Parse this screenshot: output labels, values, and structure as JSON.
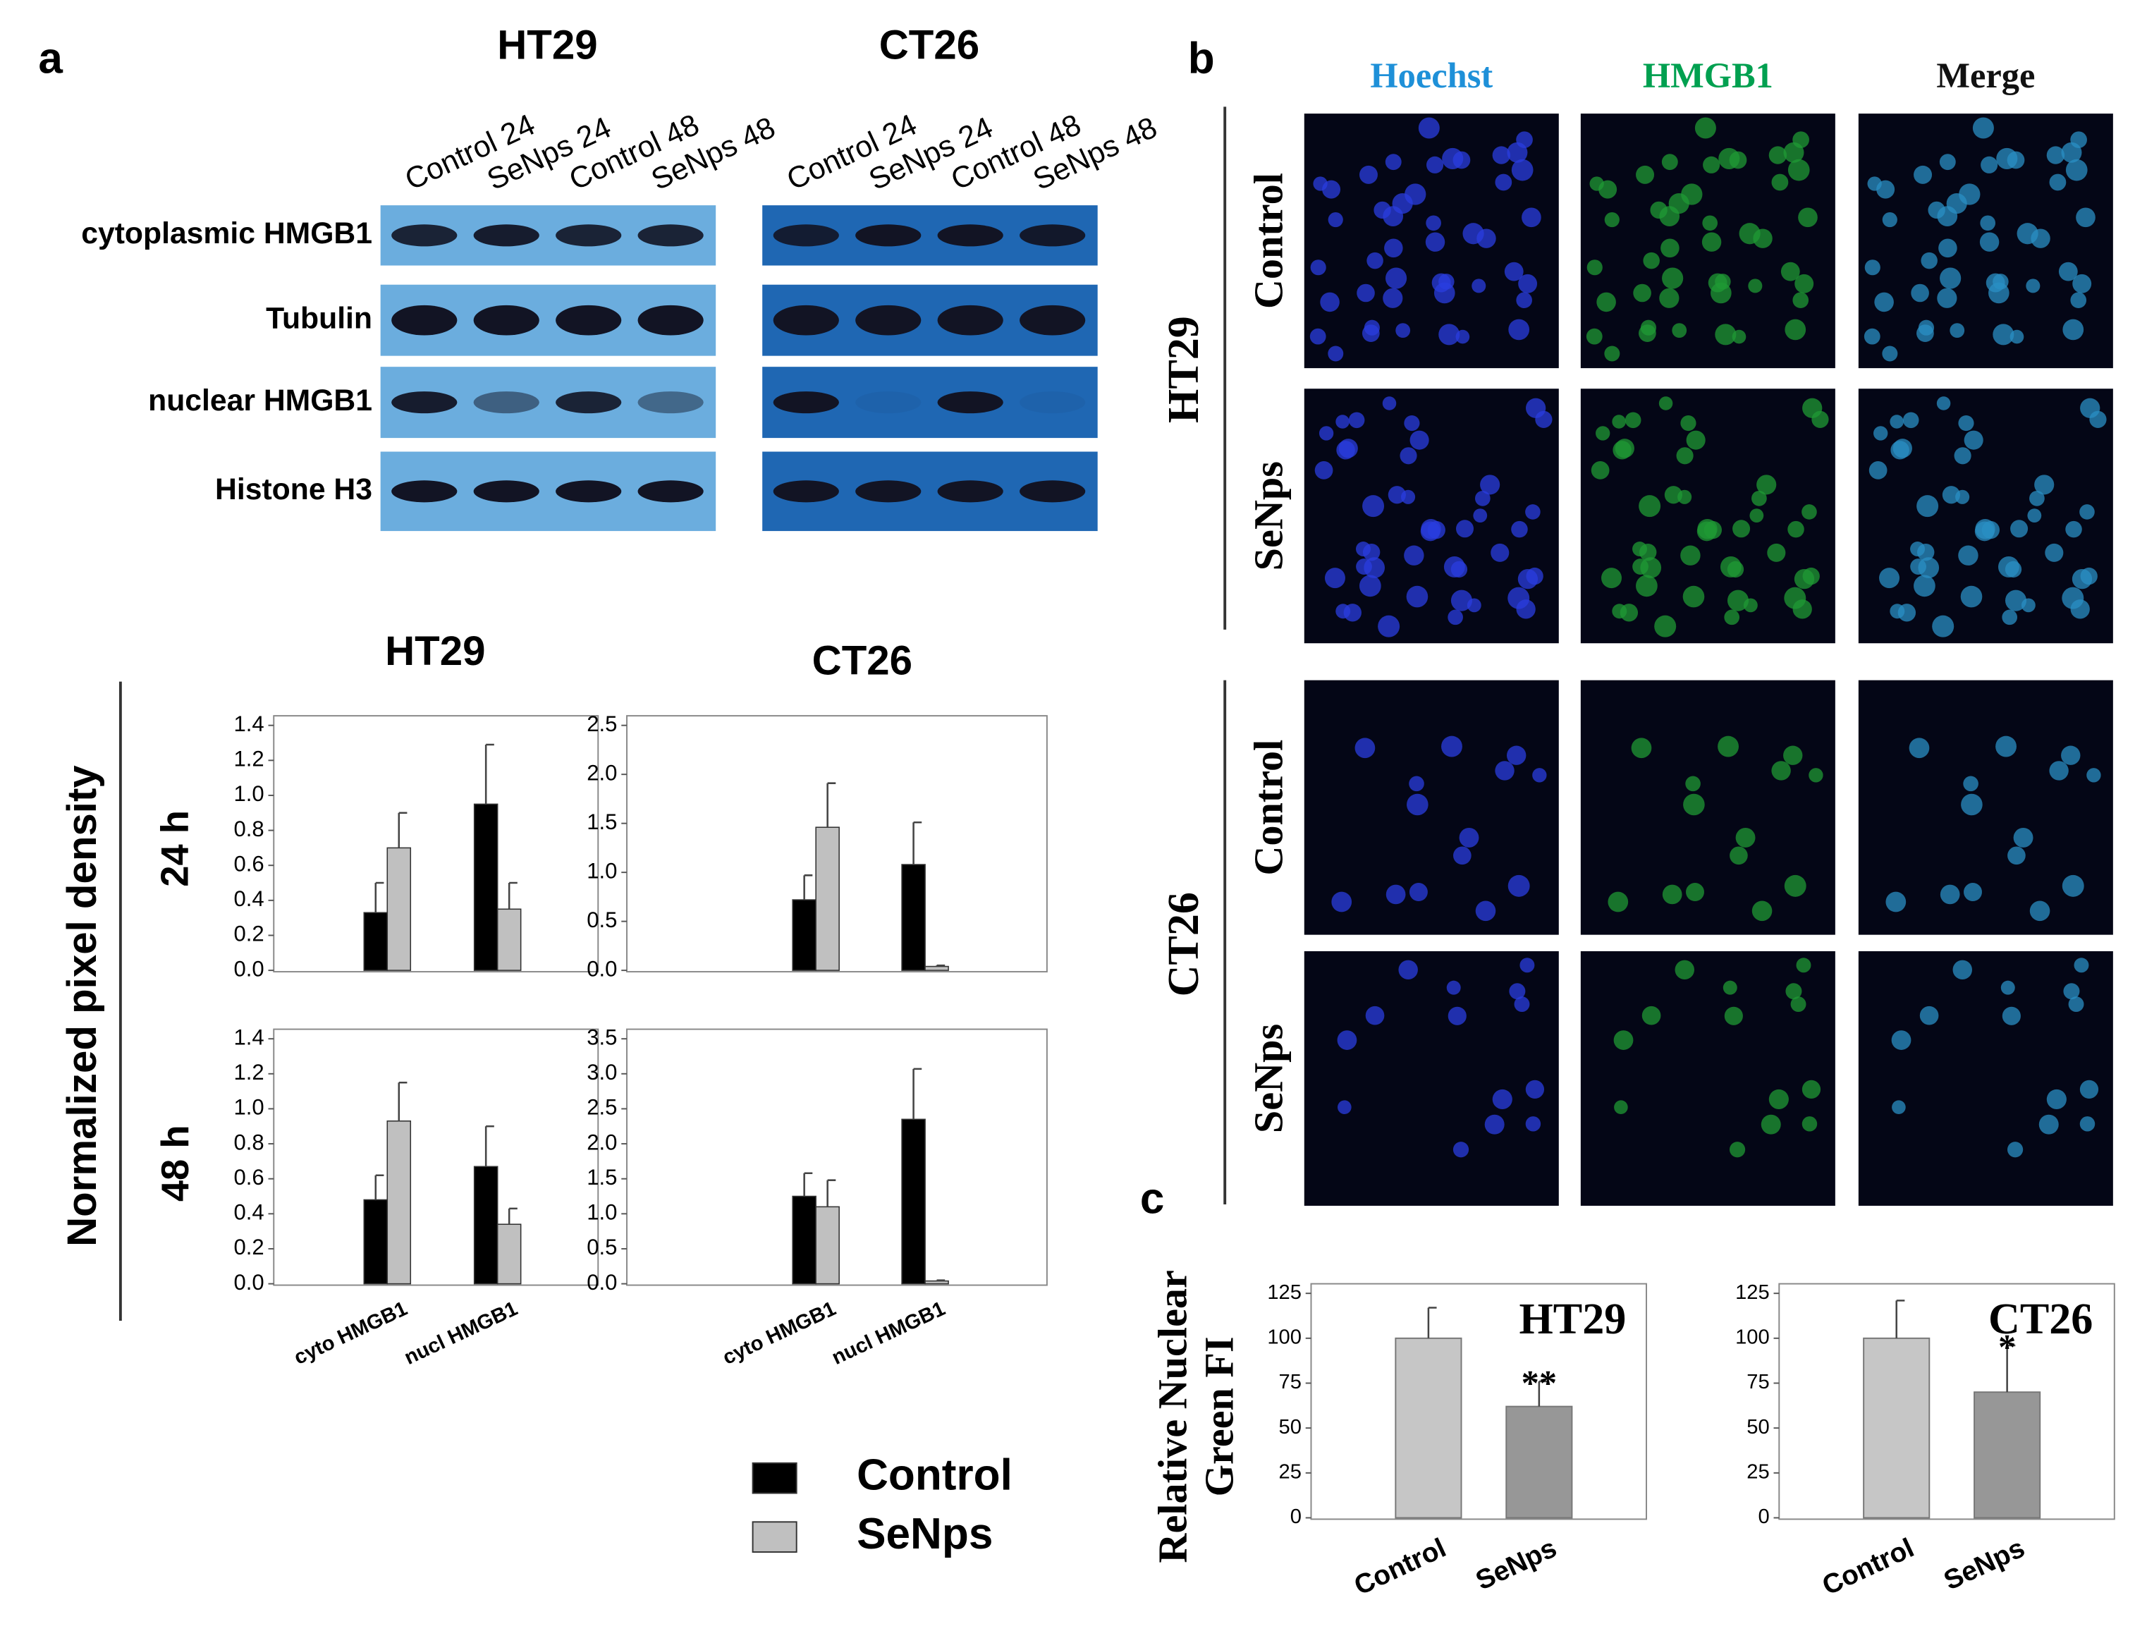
{
  "panel_labels": [
    "a",
    "b",
    "c"
  ],
  "blot": {
    "groups": [
      {
        "title": "HT29",
        "lanes": [
          "Control 24",
          "SeNps 24",
          "Control 48",
          "SeNps 48"
        ]
      },
      {
        "title": "CT26",
        "lanes": [
          "Control 24",
          "SeNps 24",
          "Control 48",
          "SeNps 48"
        ]
      }
    ],
    "rows": [
      "cytoplasmic  HMGB1",
      "Tubulin",
      "nuclear HMGB1",
      "Histone H3"
    ]
  },
  "microscopy": {
    "channels": [
      "Hoechst",
      "HMGB1",
      "Merge"
    ],
    "groups": [
      {
        "name": "HT29",
        "conditions": [
          "Control",
          "SeNps"
        ]
      },
      {
        "name": "CT26",
        "conditions": [
          "Control",
          "SeNps"
        ]
      }
    ]
  },
  "densitometry": {
    "ylabel": "Normalized pixel density",
    "rows": [
      "24 h",
      "48 h"
    ]
  },
  "chart_data": [
    {
      "type": "bar",
      "title": "HT29",
      "categories": [
        null,
        null
      ],
      "series": [
        {
          "name": "Control",
          "color": "#000000",
          "values": [
            0.33,
            0.95
          ],
          "errors": [
            0.17,
            0.34
          ]
        },
        {
          "name": "SeNps",
          "color": "#c0c0c0",
          "values": [
            0.7,
            0.35
          ],
          "errors": [
            0.2,
            0.15
          ]
        }
      ],
      "ylim": [
        0,
        1.4
      ],
      "yticks": [
        {
          "value": 0,
          "label": "0.0"
        },
        {
          "value": 0.2,
          "label": "0.2"
        },
        {
          "value": 0.4,
          "label": "0.4"
        },
        {
          "value": 0.6,
          "label": "0.6"
        },
        {
          "value": 0.8,
          "label": "0.8"
        },
        {
          "value": 1,
          "label": "1.0"
        },
        {
          "value": 1.2,
          "label": "1.2"
        },
        {
          "value": 1.4,
          "label": "1.4"
        }
      ]
    },
    {
      "type": "bar",
      "title": "CT26",
      "categories": [
        null,
        null
      ],
      "series": [
        {
          "name": "Control",
          "color": "#000000",
          "values": [
            0.72,
            1.08
          ],
          "errors": [
            0.25,
            0.43
          ]
        },
        {
          "name": "SeNps",
          "color": "#c0c0c0",
          "values": [
            1.46,
            0.04
          ],
          "errors": [
            0.45,
            0.01
          ]
        }
      ],
      "ylim": [
        0,
        2.5
      ],
      "yticks": [
        {
          "value": 0,
          "label": "0.0"
        },
        {
          "value": 0.5,
          "label": "0.5"
        },
        {
          "value": 1,
          "label": "1.0"
        },
        {
          "value": 1.5,
          "label": "1.5"
        },
        {
          "value": 2,
          "label": "2.0"
        },
        {
          "value": 2.5,
          "label": "2.5"
        }
      ]
    },
    {
      "type": "bar",
      "categories": [
        "cyto HMGB1",
        "nucl HMGB1"
      ],
      "series": [
        {
          "name": "Control",
          "color": "#000000",
          "values": [
            0.48,
            0.67
          ],
          "errors": [
            0.14,
            0.23
          ]
        },
        {
          "name": "SeNps",
          "color": "#c0c0c0",
          "values": [
            0.93,
            0.34
          ],
          "errors": [
            0.22,
            0.09
          ]
        }
      ],
      "ylim": [
        0,
        1.4
      ],
      "yticks": [
        {
          "value": 0,
          "label": "0.0"
        },
        {
          "value": 0.2,
          "label": "0.2"
        },
        {
          "value": 0.4,
          "label": "0.4"
        },
        {
          "value": 0.6,
          "label": "0.6"
        },
        {
          "value": 0.8,
          "label": "0.8"
        },
        {
          "value": 1,
          "label": "1.0"
        },
        {
          "value": 1.2,
          "label": "1.2"
        },
        {
          "value": 1.4,
          "label": "1.4"
        }
      ]
    },
    {
      "type": "bar",
      "categories": [
        "cyto HMGB1",
        "nucl HMGB1"
      ],
      "series": [
        {
          "name": "Control",
          "color": "#000000",
          "values": [
            1.25,
            2.35
          ],
          "errors": [
            0.33,
            0.72
          ]
        },
        {
          "name": "SeNps",
          "color": "#c0c0c0",
          "values": [
            1.1,
            0.04
          ],
          "errors": [
            0.38,
            0.01
          ]
        }
      ],
      "ylim": [
        0,
        3.5
      ],
      "yticks": [
        {
          "value": 0,
          "label": "0.0"
        },
        {
          "value": 0.5,
          "label": "0.5"
        },
        {
          "value": 1,
          "label": "1.0"
        },
        {
          "value": 1.5,
          "label": "1.5"
        },
        {
          "value": 2,
          "label": "2.0"
        },
        {
          "value": 2.5,
          "label": "2.5"
        },
        {
          "value": 3,
          "label": "3.0"
        },
        {
          "value": 3.5,
          "label": "3.5"
        }
      ]
    },
    {
      "type": "bar",
      "annotation": "HT29",
      "ylabel": [
        "Relative Nuclear",
        "Green FI"
      ],
      "categories": [
        "Control",
        "SeNps"
      ],
      "values": [
        100,
        62
      ],
      "errors": [
        17,
        14
      ],
      "colors": [
        "#c6c6c6",
        "#979797"
      ],
      "significance": [
        null,
        "**"
      ],
      "ylim": [
        0,
        125
      ],
      "yticks": [
        0,
        25,
        50,
        75,
        100,
        125
      ]
    },
    {
      "type": "bar",
      "annotation": "CT26",
      "categories": [
        "Control",
        "SeNps"
      ],
      "values": [
        100,
        70
      ],
      "errors": [
        21,
        26
      ],
      "colors": [
        "#c6c6c6",
        "#979797"
      ],
      "significance": [
        null,
        "*"
      ],
      "ylim": [
        0,
        125
      ],
      "yticks": [
        0,
        25,
        50,
        75,
        100,
        125
      ]
    }
  ]
}
